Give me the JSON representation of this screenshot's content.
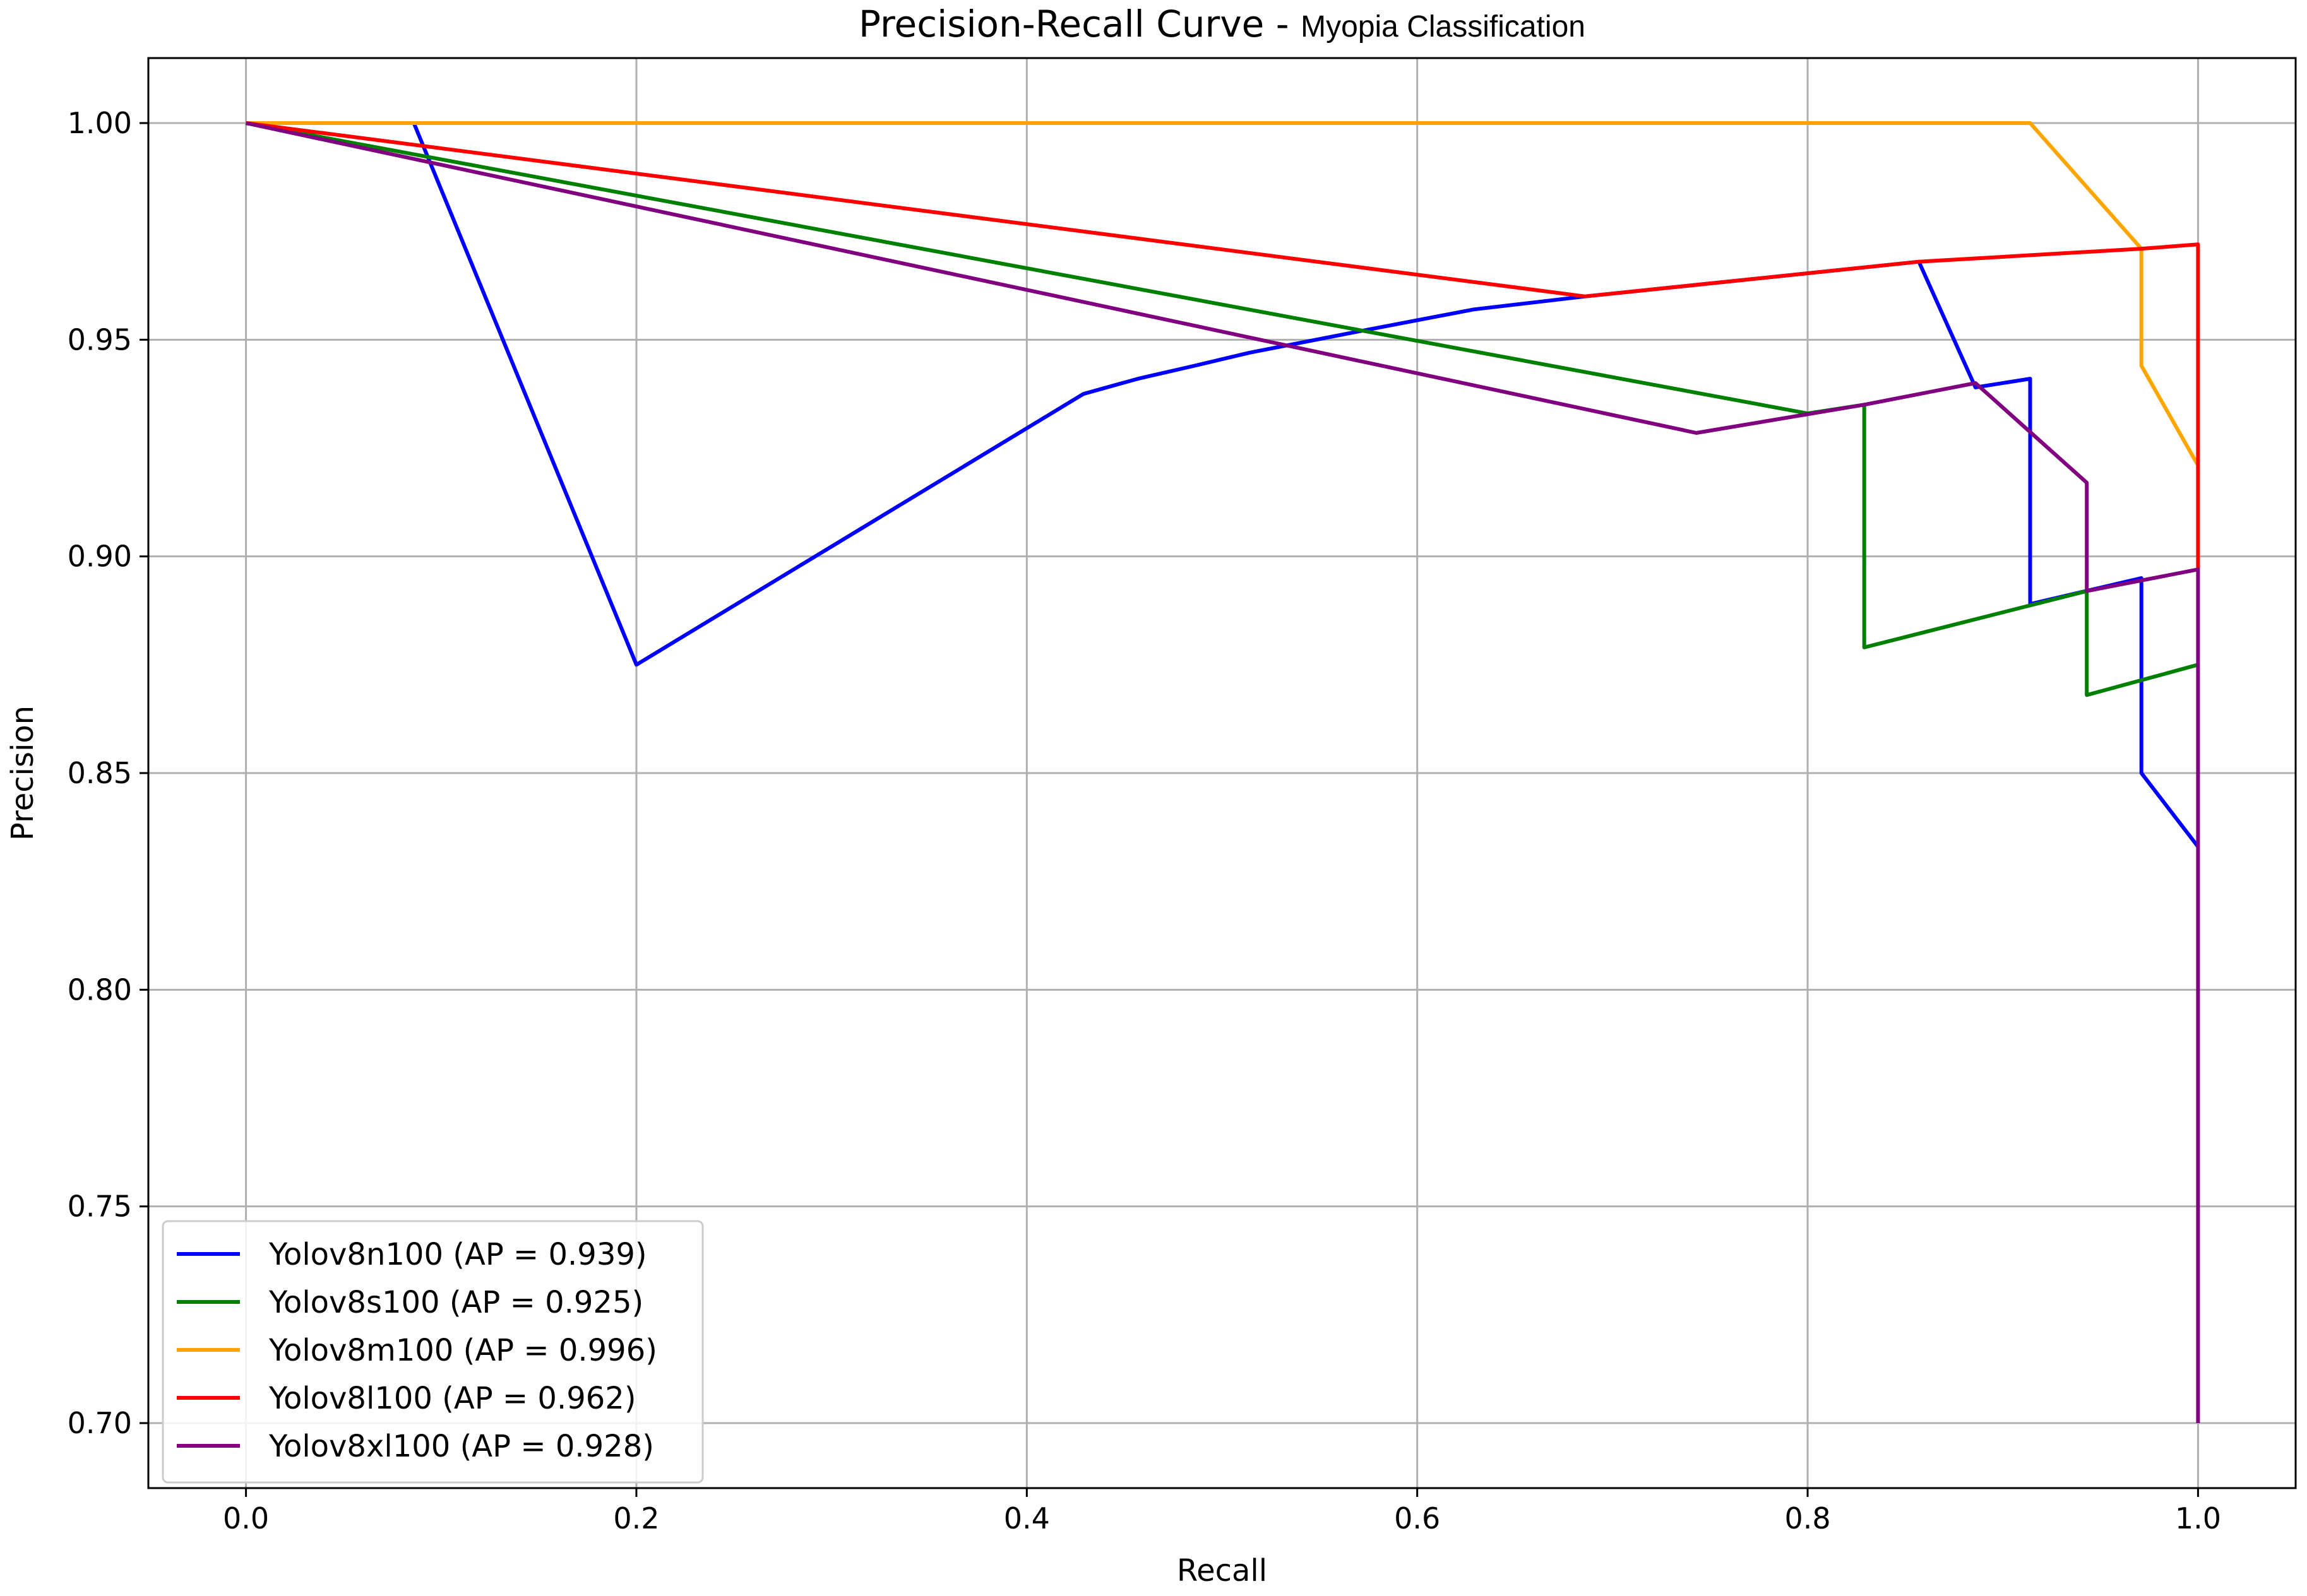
{
  "chart_data": {
    "type": "line",
    "title": "Precision-Recall Curve",
    "subtitle": "Myopia Classification",
    "xlabel": "Recall",
    "ylabel": "Precision",
    "xlim": [
      -0.05,
      1.05
    ],
    "ylim": [
      0.685,
      1.015
    ],
    "xticks": [
      0.0,
      0.2,
      0.4,
      0.6,
      0.8,
      1.0
    ],
    "xtick_labels": [
      "0.0",
      "0.2",
      "0.4",
      "0.6",
      "0.8",
      "1.0"
    ],
    "yticks": [
      0.7,
      0.75,
      0.8,
      0.85,
      0.9,
      0.95,
      1.0
    ],
    "ytick_labels": [
      "0.70",
      "0.75",
      "0.80",
      "0.85",
      "0.90",
      "0.95",
      "1.00"
    ],
    "grid": true,
    "legend_position": "lower-left",
    "series": [
      {
        "name": "Yolov8n100 (AP = 0.939)",
        "color": "#0000ff",
        "x": [
          0.0,
          0.086,
          0.2,
          0.429,
          0.457,
          0.486,
          0.514,
          0.571,
          0.629,
          0.686,
          0.857,
          0.886,
          0.914,
          0.914,
          0.914,
          0.971,
          0.971,
          0.971,
          1.0
        ],
        "y": [
          1.0,
          1.0,
          0.875,
          0.9375,
          0.941,
          0.944,
          0.947,
          0.952,
          0.957,
          0.96,
          0.968,
          0.939,
          0.941,
          0.889,
          0.889,
          0.895,
          0.895,
          0.85,
          0.833
        ]
      },
      {
        "name": "Yolov8s100 (AP = 0.925)",
        "color": "#008000",
        "x": [
          0.0,
          0.8,
          0.829,
          0.829,
          0.943,
          0.943,
          1.0
        ],
        "y": [
          1.0,
          0.933,
          0.935,
          0.879,
          0.892,
          0.868,
          0.875
        ]
      },
      {
        "name": "Yolov8m100 (AP = 0.996)",
        "color": "#ffa500",
        "x": [
          0.0,
          0.914,
          0.971,
          0.971,
          1.0
        ],
        "y": [
          1.0,
          1.0,
          0.971,
          0.944,
          0.921
        ]
      },
      {
        "name": "Yolov8l100 (AP = 0.962)",
        "color": "#ff0000",
        "x": [
          0.0,
          0.686,
          0.857,
          0.971,
          1.0,
          1.0
        ],
        "y": [
          1.0,
          0.96,
          0.968,
          0.971,
          0.972,
          0.897
        ]
      },
      {
        "name": "Yolov8xl100 (AP = 0.928)",
        "color": "#800080",
        "x": [
          0.0,
          0.743,
          0.829,
          0.886,
          0.943,
          0.943,
          1.0,
          1.0
        ],
        "y": [
          1.0,
          0.9285,
          0.935,
          0.94,
          0.917,
          0.892,
          0.897,
          0.7
        ]
      }
    ]
  }
}
